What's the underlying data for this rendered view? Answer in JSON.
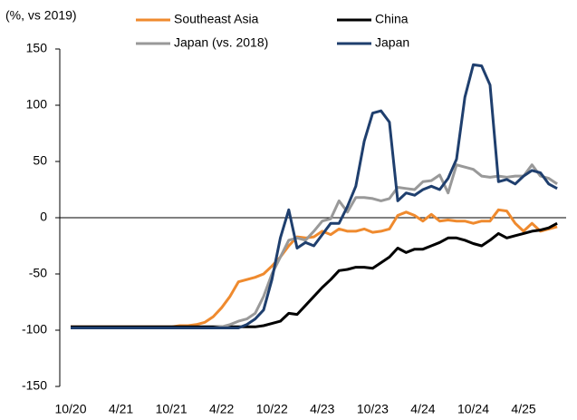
{
  "chart_data": {
    "type": "line",
    "ylabel": "(%, vs 2019)",
    "categories": [
      "10/20",
      null,
      null,
      null,
      null,
      null,
      "4/21",
      null,
      null,
      null,
      null,
      null,
      "10/21",
      null,
      null,
      null,
      null,
      null,
      "4/22",
      null,
      null,
      null,
      null,
      null,
      "10/22",
      null,
      null,
      null,
      null,
      null,
      "4/23",
      null,
      null,
      null,
      null,
      null,
      "10/23",
      null,
      null,
      null,
      null,
      null,
      "4/24",
      null,
      null,
      null,
      null,
      null,
      "10/24",
      null,
      null,
      null,
      null,
      null,
      "4/25",
      null,
      null,
      null,
      null
    ],
    "ylim": [
      -150,
      150
    ],
    "yticks": [
      -150,
      -100,
      -50,
      0,
      50,
      100,
      150
    ],
    "legend": "top",
    "series": [
      {
        "name": "Southeast Asia",
        "color": "#ef8a2e",
        "values": [
          -97,
          -97,
          -97,
          -97,
          -97,
          -97,
          -97,
          -97,
          -97,
          -97,
          -97,
          -97,
          -97,
          -96,
          -96,
          -95,
          -93,
          -88,
          -80,
          -70,
          -57,
          -55,
          -53,
          -50,
          -43,
          -35,
          -25,
          -17,
          -18,
          -17,
          -12,
          -15,
          -10,
          -12,
          -12,
          -10,
          -13,
          -12,
          -10,
          2,
          5,
          2,
          -3,
          3,
          -3,
          -2,
          -3,
          -3,
          -5,
          -3,
          -3,
          7,
          6,
          -5,
          -12,
          -5,
          -12,
          -10,
          -8
        ]
      },
      {
        "name": "China",
        "color": "#000000",
        "values": [
          -97,
          -97,
          -97,
          -97,
          -97,
          -97,
          -97,
          -97,
          -97,
          -97,
          -97,
          -97,
          -97,
          -97,
          -97,
          -97,
          -97,
          -97,
          -97,
          -97,
          -97,
          -97,
          -97,
          -96,
          -94,
          -92,
          -85,
          -86,
          -78,
          -70,
          -62,
          -55,
          -47,
          -46,
          -44,
          -44,
          -45,
          -40,
          -35,
          -27,
          -31,
          -28,
          -28,
          -25,
          -22,
          -18,
          -18,
          -20,
          -23,
          -25,
          -20,
          -14,
          -18,
          -16,
          -14,
          -12,
          -11,
          -9,
          -5
        ]
      },
      {
        "name": "Japan (vs. 2018)",
        "color": "#999999",
        "values": [
          -98,
          -98,
          -98,
          -98,
          -98,
          -98,
          -98,
          -98,
          -98,
          -98,
          -98,
          -98,
          -98,
          -98,
          -98,
          -98,
          -98,
          -98,
          -97,
          -95,
          -92,
          -90,
          -85,
          -70,
          -50,
          -35,
          -20,
          -18,
          -20,
          -12,
          -3,
          -1,
          15,
          5,
          18,
          18,
          17,
          15,
          17,
          27,
          26,
          25,
          32,
          33,
          38,
          22,
          47,
          45,
          43,
          37,
          36,
          37,
          36,
          37,
          37,
          47,
          37,
          35,
          30
        ]
      },
      {
        "name": "Japan",
        "color": "#1f3f6e",
        "values": [
          -98,
          -98,
          -98,
          -98,
          -98,
          -98,
          -98,
          -98,
          -98,
          -98,
          -98,
          -98,
          -98,
          -98,
          -98,
          -98,
          -98,
          -98,
          -98,
          -98,
          -98,
          -95,
          -90,
          -82,
          -55,
          -18,
          7,
          -27,
          -22,
          -25,
          -15,
          -5,
          -5,
          10,
          28,
          68,
          93,
          95,
          85,
          15,
          22,
          20,
          25,
          28,
          25,
          35,
          52,
          107,
          136,
          135,
          118,
          32,
          34,
          30,
          37,
          42,
          40,
          30,
          26
        ]
      }
    ]
  }
}
